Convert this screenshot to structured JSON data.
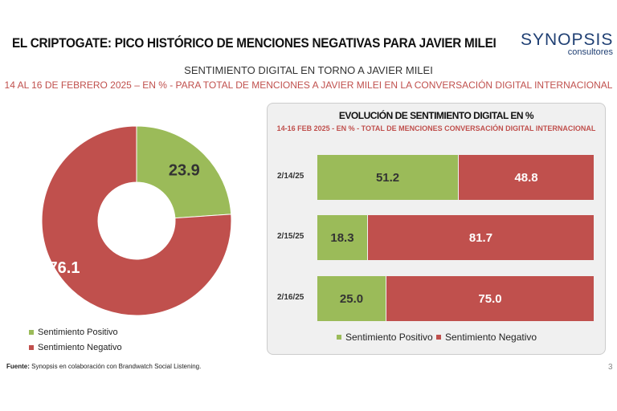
{
  "header": {
    "title": "EL CRIPTOGATE: PICO HISTÓRICO DE MENCIONES NEGATIVAS PARA JAVIER MILEI",
    "logo_line1": "SYNOPSIS",
    "logo_line2": "consultores",
    "subtitle": "SENTIMIENTO DIGITAL EN TORNO A JAVIER MILEI",
    "subtitle2": "14 AL 16 DE FEBRERO 2025 – EN % - PARA TOTAL DE MENCIONES A JAVIER MILEI EN LA CONVERSACIÓN DIGITAL INTERNACIONAL"
  },
  "colors": {
    "positive": "#9bbb59",
    "negative": "#c0504d"
  },
  "chart_data": [
    {
      "type": "pie",
      "donut": true,
      "categories": [
        "Sentimiento Positivo",
        "Sentimiento Negativo"
      ],
      "values": [
        23.9,
        76.1
      ],
      "labels": [
        "23.9",
        "76.1"
      ],
      "legend": "bottom-left"
    },
    {
      "type": "bar",
      "orientation": "horizontal",
      "stacked": true,
      "title": "EVOLUCIÓN DE SENTIMIENTO DIGITAL EN %",
      "subtitle": "14-16 FEB 2025 - EN % - TOTAL DE MENCIONES CONVERSACIÓN DIGITAL INTERNACIONAL",
      "categories": [
        "2/14/25",
        "2/15/25",
        "2/16/25"
      ],
      "series": [
        {
          "name": "Sentimiento Positivo",
          "values": [
            51.2,
            18.3,
            25.0
          ],
          "labels": [
            "51.2",
            "18.3",
            "25.0"
          ]
        },
        {
          "name": "Sentimiento Negativo",
          "values": [
            48.8,
            81.7,
            75.0
          ],
          "labels": [
            "48.8",
            "81.7",
            "75.0"
          ]
        }
      ],
      "xlim": [
        0,
        100
      ],
      "legend": "bottom"
    }
  ],
  "footer": {
    "source_label": "Fuente:",
    "source_text": " Synopsis en colaboración con Brandwatch Social Listening.",
    "page": "3"
  }
}
